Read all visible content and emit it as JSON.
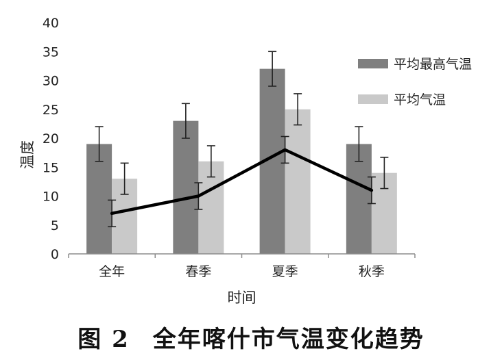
{
  "caption": {
    "figure": "图 2",
    "text": "全年喀什市气温变化趋势"
  },
  "colors": {
    "max_bar": "#7f7f7f",
    "avg_bar": "#c9c9c9",
    "line": "#000000",
    "axis": "#8c8c8c",
    "error": "#222222"
  },
  "chart_data": {
    "type": "bar",
    "title": "",
    "xlabel": "时间",
    "ylabel": "温度",
    "ylim": [
      0,
      40
    ],
    "yticks": [
      0,
      5,
      10,
      15,
      20,
      25,
      30,
      35,
      40
    ],
    "categories": [
      "全年",
      "春季",
      "夏季",
      "秋季"
    ],
    "series": [
      {
        "name": "平均最高气温",
        "kind": "bar",
        "values": [
          19,
          23,
          32,
          19
        ],
        "error_low": [
          16,
          20,
          29,
          16
        ],
        "error_high": [
          22,
          26,
          35,
          22
        ]
      },
      {
        "name": "平均气温",
        "kind": "bar",
        "values": [
          13,
          16,
          25,
          14
        ],
        "error_low": [
          10.3,
          13.3,
          22.3,
          11.3
        ],
        "error_high": [
          15.7,
          18.7,
          27.7,
          16.7
        ]
      },
      {
        "kind": "line",
        "values": [
          7,
          10,
          18,
          11
        ],
        "error_low": [
          4.7,
          7.7,
          15.7,
          8.7
        ],
        "error_high": [
          9.3,
          12.3,
          20.3,
          13.3
        ]
      }
    ],
    "legend_position": "right",
    "grid": false
  }
}
